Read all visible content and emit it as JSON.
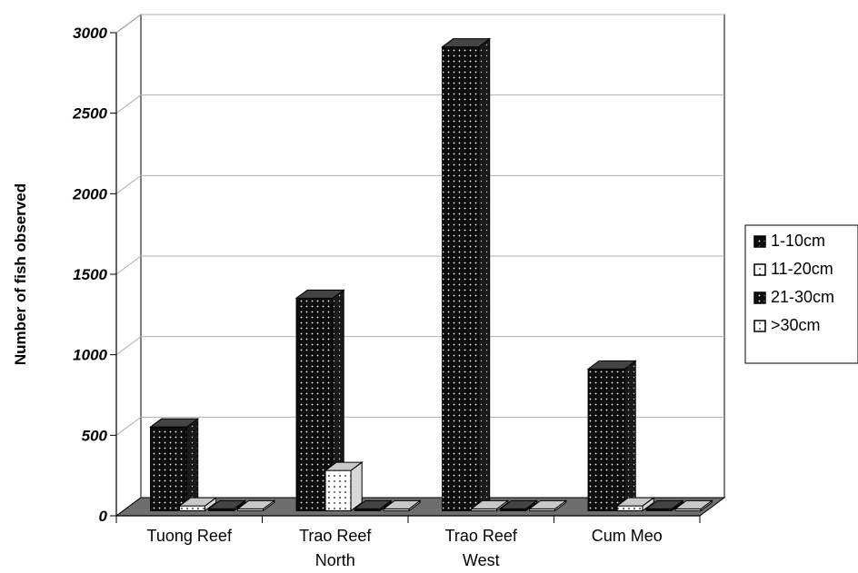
{
  "chart_data": {
    "type": "bar",
    "title": "",
    "xlabel": "",
    "ylabel": "Number of fish observed",
    "ylim": [
      0,
      3000
    ],
    "yticks": [
      0,
      500,
      1000,
      1500,
      2000,
      2500,
      3000
    ],
    "categories": [
      {
        "lines": [
          "Tuong Reef"
        ]
      },
      {
        "lines": [
          "Trao Reef",
          "North"
        ]
      },
      {
        "lines": [
          "Trao Reef",
          "West"
        ]
      },
      {
        "lines": [
          "Cum Meo"
        ]
      }
    ],
    "series": [
      {
        "name": "1-10cm",
        "values": [
          520,
          1320,
          2880,
          880
        ],
        "pattern": "dark-dots"
      },
      {
        "name": "11-20cm",
        "values": [
          30,
          250,
          0,
          30
        ],
        "pattern": "light-dots"
      },
      {
        "name": "21-30cm",
        "values": [
          0,
          0,
          0,
          0
        ],
        "pattern": "dark-dots"
      },
      {
        "name": ">30cm",
        "values": [
          0,
          0,
          0,
          0
        ],
        "pattern": "light-dots"
      }
    ],
    "legend": {
      "position": "right"
    },
    "grid": true,
    "style": "3d-column",
    "colors": {
      "dark_fill": "#111111",
      "light_fill": "#ffffff",
      "floor": "#6e6e6e",
      "gridline": "#b0b0b0"
    }
  }
}
